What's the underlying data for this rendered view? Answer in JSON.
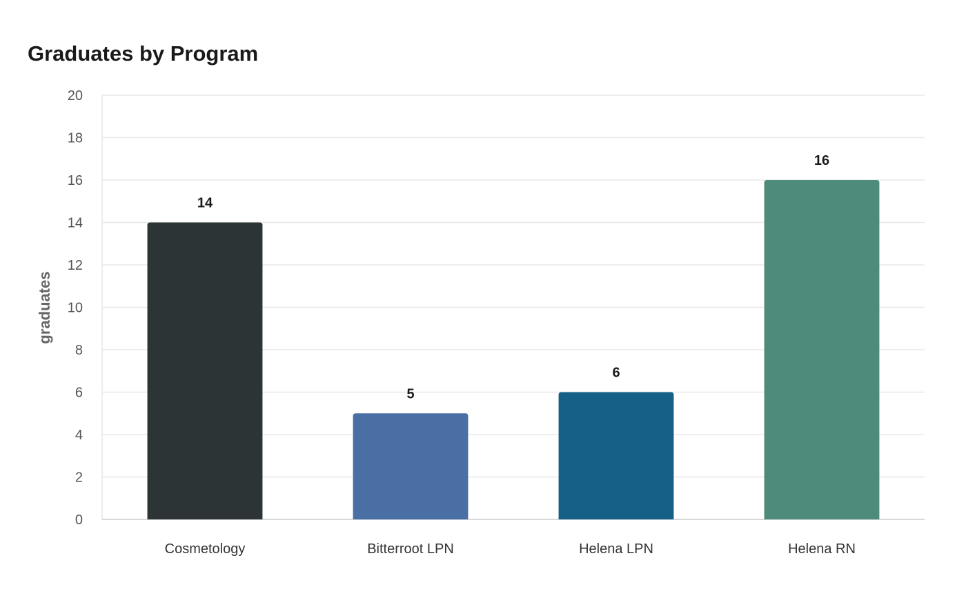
{
  "chart_data": {
    "type": "bar",
    "title": "Graduates by Program",
    "xlabel": "",
    "ylabel": "graduates",
    "ylim": [
      0,
      20
    ],
    "yticks": [
      0,
      2,
      4,
      6,
      8,
      10,
      12,
      14,
      16,
      18,
      20
    ],
    "grid": true,
    "categories": [
      "Cosmetology",
      "Bitterroot LPN",
      "Helena LPN",
      "Helena RN"
    ],
    "values": [
      14,
      5,
      6,
      16
    ],
    "colors": [
      "#2d3436",
      "#4a6fa5",
      "#166088",
      "#4f8b7a"
    ],
    "data_labels": [
      "14",
      "5",
      "6",
      "16"
    ]
  }
}
